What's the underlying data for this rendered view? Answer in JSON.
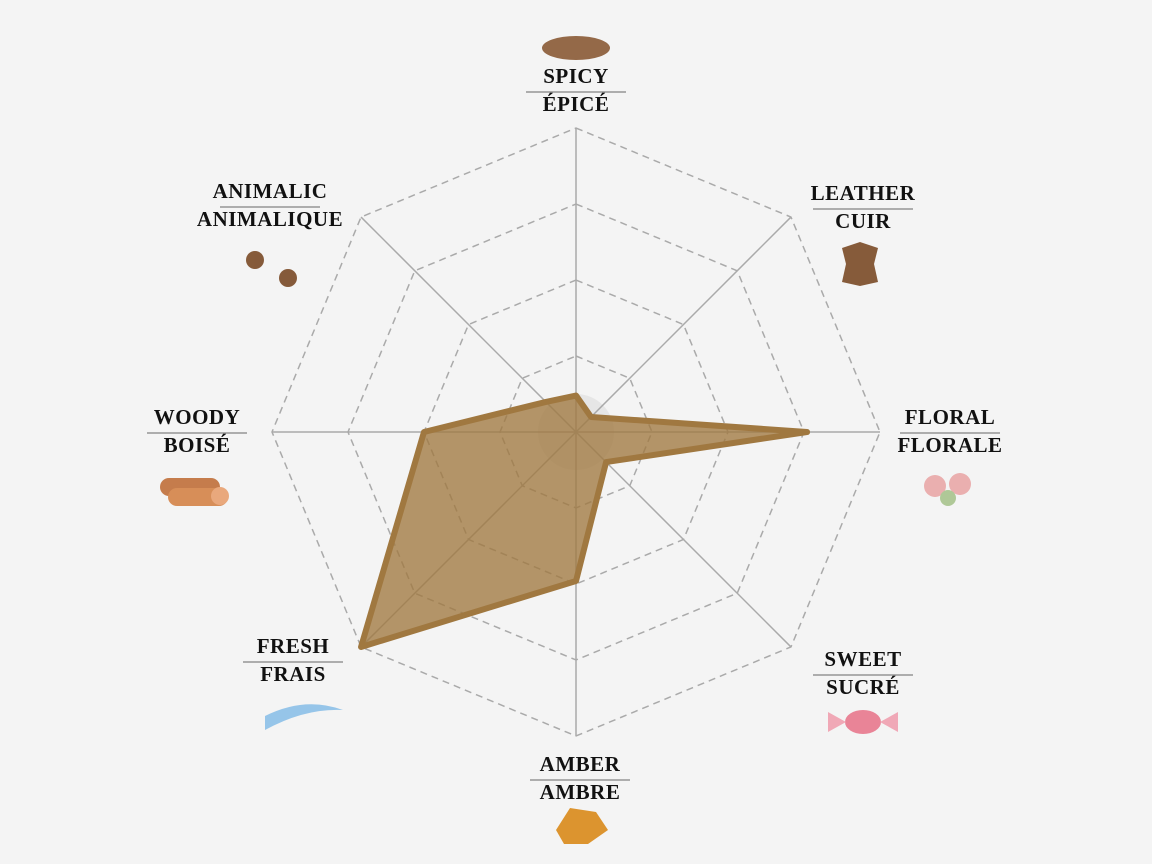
{
  "chart_data": {
    "type": "radar",
    "categories": [
      "SPICY",
      "LEATHER",
      "FLORAL",
      "SWEET",
      "AMBER",
      "FRESH",
      "WOODY",
      "ANIMALIC"
    ],
    "categories_fr": [
      "ÉPICÉ",
      "CUIR",
      "FLORALE",
      "SUCRÉ",
      "AMBRE",
      "FRAIS",
      "BOISÉ",
      "ANIMALIQUE"
    ],
    "values": [
      12,
      7,
      76,
      14,
      49,
      100,
      50,
      14
    ],
    "color": "#a07840",
    "rlim": [
      0,
      100
    ],
    "rticks": [
      25,
      50,
      75,
      100
    ],
    "grid": true
  }
}
